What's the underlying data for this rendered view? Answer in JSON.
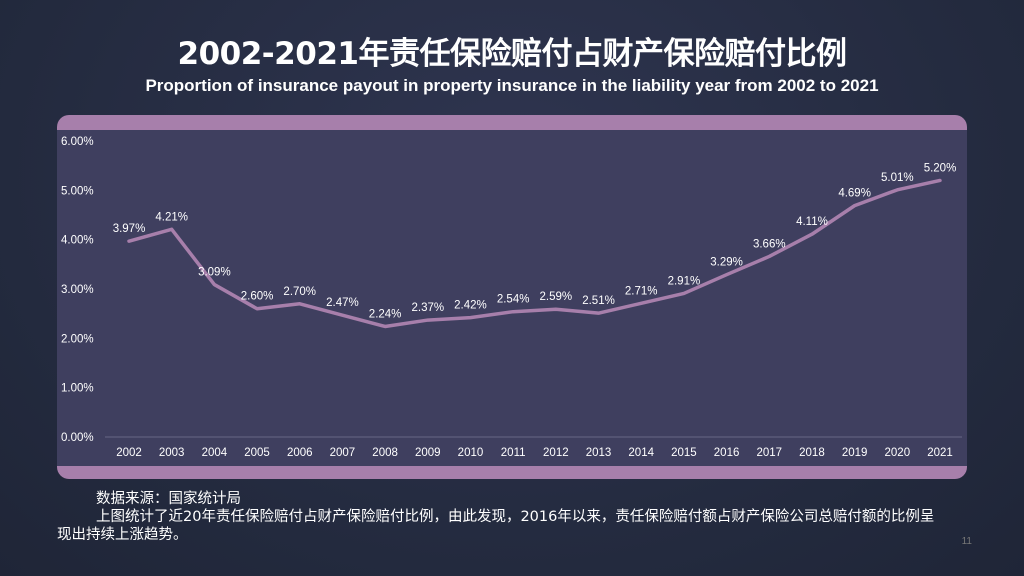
{
  "title": "2002-2021年责任保险赔付占财产保险赔付比例",
  "subtitle": "Proportion of insurance payout in property insurance in the liability year from 2002 to 2021",
  "chart_data": {
    "type": "line",
    "categories": [
      "2002",
      "2003",
      "2004",
      "2005",
      "2006",
      "2007",
      "2008",
      "2009",
      "2010",
      "2011",
      "2012",
      "2013",
      "2014",
      "2015",
      "2016",
      "2017",
      "2018",
      "2019",
      "2020",
      "2021"
    ],
    "values": [
      3.97,
      4.21,
      3.09,
      2.6,
      2.7,
      2.47,
      2.24,
      2.37,
      2.42,
      2.54,
      2.59,
      2.51,
      2.71,
      2.91,
      3.29,
      3.66,
      4.11,
      4.69,
      5.01,
      5.2
    ],
    "data_labels": [
      "3.97%",
      "4.21%",
      "3.09%",
      "2.60%",
      "2.70%",
      "2.47%",
      "2.24%",
      "2.37%",
      "2.42%",
      "2.54%",
      "2.59%",
      "2.51%",
      "2.71%",
      "2.91%",
      "3.29%",
      "3.66%",
      "4.11%",
      "4.69%",
      "5.01%",
      "5.20%"
    ],
    "yticks": [
      "0.00%",
      "1.00%",
      "2.00%",
      "3.00%",
      "4.00%",
      "5.00%",
      "6.00%"
    ],
    "ylim": [
      0,
      6
    ],
    "grid": false,
    "line_color": "#a77fab"
  },
  "notes": {
    "source": "数据来源：国家统计局",
    "text": "上图统计了近20年责任保险赔付占财产保险赔付比例，由此发现，2016年以来，责任保险赔付额占财产保险公司总赔付额的比例呈现出持续上涨趋势。"
  },
  "page_number": "11"
}
